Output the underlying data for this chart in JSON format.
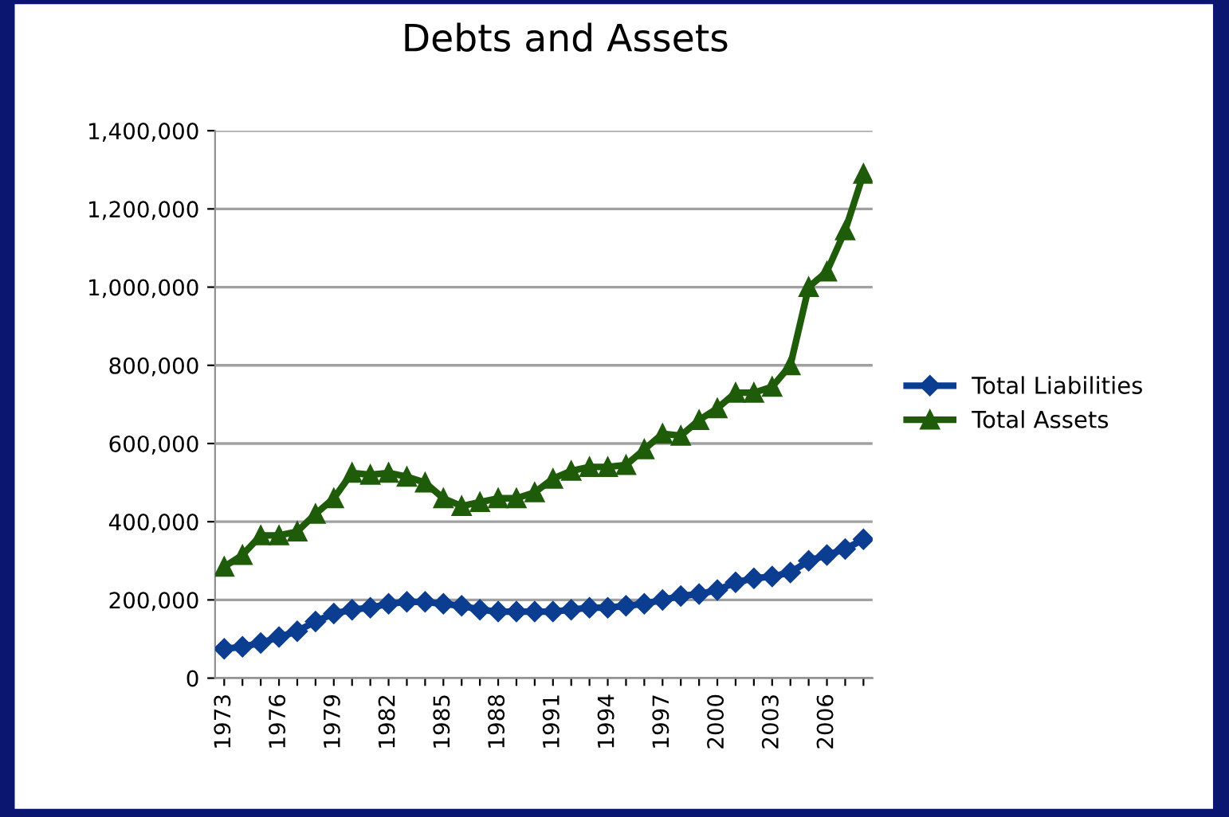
{
  "chart_data": {
    "type": "line",
    "title": "Debts and Assets",
    "categories": [
      "1973",
      null,
      null,
      "1976",
      null,
      null,
      "1979",
      null,
      null,
      "1982",
      null,
      null,
      "1985",
      null,
      null,
      "1988",
      null,
      null,
      "1991",
      null,
      null,
      "1994",
      null,
      null,
      "1997",
      null,
      null,
      "2000",
      null,
      null,
      "2003",
      null,
      null,
      "2006",
      null,
      null
    ],
    "series": [
      {
        "name": "Total Liabilities",
        "color": "#0b3d91",
        "marker": "diamond",
        "values": [
          75000,
          80000,
          90000,
          105000,
          120000,
          145000,
          165000,
          175000,
          180000,
          190000,
          195000,
          195000,
          190000,
          185000,
          175000,
          170000,
          170000,
          170000,
          170000,
          175000,
          180000,
          180000,
          185000,
          190000,
          200000,
          210000,
          215000,
          225000,
          245000,
          255000,
          260000,
          270000,
          300000,
          315000,
          330000,
          355000
        ]
      },
      {
        "name": "Total Assets",
        "color": "#1f5c0a",
        "marker": "triangle",
        "values": [
          285000,
          315000,
          365000,
          365000,
          375000,
          420000,
          460000,
          525000,
          520000,
          525000,
          515000,
          500000,
          460000,
          440000,
          450000,
          460000,
          460000,
          475000,
          510000,
          530000,
          540000,
          540000,
          545000,
          585000,
          625000,
          620000,
          660000,
          690000,
          730000,
          730000,
          745000,
          800000,
          1000000,
          1040000,
          1145000,
          1290000
        ]
      }
    ],
    "ylim": [
      0,
      1400000
    ],
    "yticks": [
      {
        "value": 0,
        "label": "0"
      },
      {
        "value": 200000,
        "label": "200,000"
      },
      {
        "value": 400000,
        "label": "400,000"
      },
      {
        "value": 600000,
        "label": "600,000"
      },
      {
        "value": 800000,
        "label": "800,000"
      },
      {
        "value": 1000000,
        "label": "1,000,000"
      },
      {
        "value": 1200000,
        "label": "1,200,000"
      },
      {
        "value": 1400000,
        "label": "1,400,000"
      }
    ],
    "grid": "y",
    "legend": "right",
    "line_style": "solid"
  }
}
